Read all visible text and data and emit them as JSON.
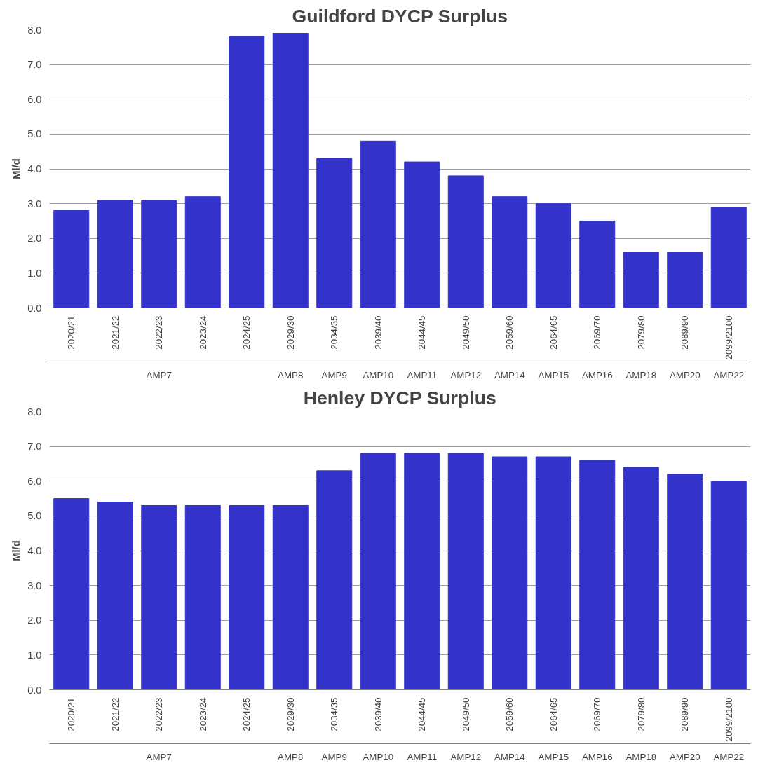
{
  "chart_data": [
    {
      "type": "bar",
      "title": "Guildford DYCP Surplus",
      "ylabel": "Ml/d",
      "categories": [
        "2020/21",
        "2021/22",
        "2022/23",
        "2023/24",
        "2024/25",
        "2029/30",
        "2034/35",
        "2039/40",
        "2044/45",
        "2049/50",
        "2059/60",
        "2064/65",
        "2069/70",
        "2079/80",
        "2089/90",
        "2099/2100"
      ],
      "values": [
        2.8,
        3.1,
        3.1,
        3.2,
        7.8,
        7.9,
        4.3,
        4.8,
        4.2,
        3.8,
        3.2,
        3.0,
        2.5,
        1.6,
        1.6,
        2.9
      ],
      "color": "#3333cc",
      "ylim": [
        0,
        8
      ],
      "yticks": [
        {
          "value": 0,
          "label": "0.0"
        },
        {
          "value": 1,
          "label": "1.0"
        },
        {
          "value": 2,
          "label": "2.0"
        },
        {
          "value": 3,
          "label": "3.0"
        },
        {
          "value": 4,
          "label": "4.0"
        },
        {
          "value": 5,
          "label": "5.0"
        },
        {
          "value": 6,
          "label": "6.0"
        },
        {
          "value": 7,
          "label": "7.0"
        },
        {
          "value": 8,
          "label": "8.0"
        }
      ],
      "grid": "y",
      "annotations": [
        "AMP7",
        "AMP8",
        "AMP9",
        "AMP10",
        "AMP11",
        "AMP12",
        "AMP14",
        "AMP15",
        "AMP16",
        "AMP18",
        "AMP20",
        "AMP22"
      ]
    },
    {
      "type": "bar",
      "title": "Henley DYCP Surplus",
      "ylabel": "Ml/d",
      "categories": [
        "2020/21",
        "2021/22",
        "2022/23",
        "2023/24",
        "2024/25",
        "2029/30",
        "2034/35",
        "2039/40",
        "2044/45",
        "2049/50",
        "2059/60",
        "2064/65",
        "2069/70",
        "2079/80",
        "2089/90",
        "2099/2100"
      ],
      "values": [
        5.5,
        5.4,
        5.3,
        5.3,
        5.3,
        5.3,
        6.3,
        6.8,
        6.8,
        6.8,
        6.7,
        6.7,
        6.6,
        6.4,
        6.2,
        6.0
      ],
      "color": "#3333cc",
      "ylim": [
        0,
        8
      ],
      "yticks": [
        {
          "value": 0,
          "label": "0.0"
        },
        {
          "value": 1,
          "label": "1.0"
        },
        {
          "value": 2,
          "label": "2.0"
        },
        {
          "value": 3,
          "label": "3.0"
        },
        {
          "value": 4,
          "label": "4.0"
        },
        {
          "value": 5,
          "label": "5.0"
        },
        {
          "value": 6,
          "label": "6.0"
        },
        {
          "value": 7,
          "label": "7.0"
        },
        {
          "value": 8,
          "label": "8.0"
        }
      ],
      "grid": "y",
      "annotations": [
        "AMP7",
        "AMP8",
        "AMP9",
        "AMP10",
        "AMP11",
        "AMP12",
        "AMP14",
        "AMP15",
        "AMP16",
        "AMP18",
        "AMP20",
        "AMP22"
      ]
    }
  ]
}
